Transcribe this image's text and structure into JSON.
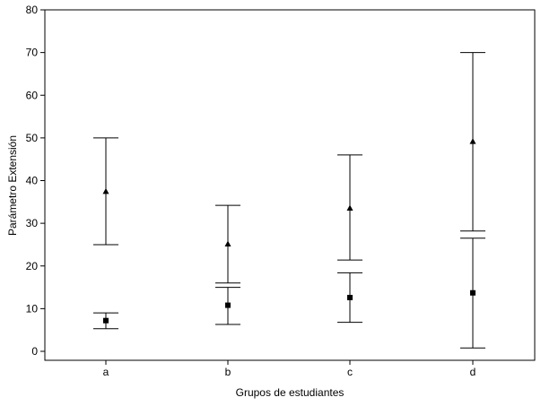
{
  "chart_data": {
    "type": "errorbar",
    "categories": [
      "a",
      "b",
      "c",
      "d"
    ],
    "xlabel": "Grupos de estudiantes",
    "ylabel": "Parámetro Extensión",
    "ylim": [
      0,
      80
    ],
    "yticks": [
      0,
      10,
      20,
      30,
      40,
      50,
      60,
      70,
      80
    ],
    "grid": false,
    "legend": "none",
    "series": [
      {
        "marker": "triangle",
        "values": [
          37.5,
          25.2,
          33.6,
          49.2
        ],
        "lower": [
          25.0,
          16.0,
          21.4,
          28.2
        ],
        "upper": [
          50.0,
          34.2,
          46.0,
          70.0
        ]
      },
      {
        "marker": "square",
        "values": [
          7.2,
          10.8,
          12.6,
          13.7
        ],
        "lower": [
          5.3,
          6.3,
          6.8,
          0.8
        ],
        "upper": [
          9.0,
          15.0,
          18.4,
          26.5
        ]
      }
    ]
  }
}
